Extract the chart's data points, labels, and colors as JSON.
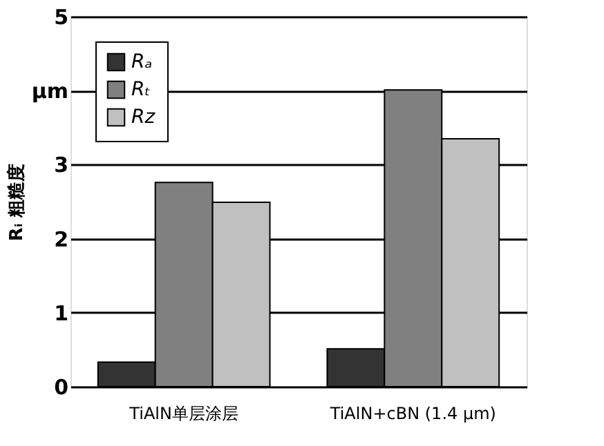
{
  "chart_data": {
    "type": "bar",
    "ylabel": "Rᵢ 粗糙度",
    "categories": [
      "TiAlN单层涂层",
      "TiAlN+cBN (1.4 μm)"
    ],
    "series": [
      {
        "name": "Rₐ",
        "color": "#333333",
        "values": [
          0.33,
          0.51
        ]
      },
      {
        "name": "Rₜ",
        "color": "#808080",
        "values": [
          2.76,
          4.01
        ]
      },
      {
        "name": "Rz",
        "color": "#c0c0c0",
        "values": [
          2.49,
          3.35
        ]
      }
    ],
    "ylim": [
      0,
      5
    ],
    "yticks": [
      0,
      1,
      2,
      3,
      {
        "value": 4,
        "label": "μm"
      },
      5
    ],
    "grid": "y",
    "legend": "top left"
  }
}
